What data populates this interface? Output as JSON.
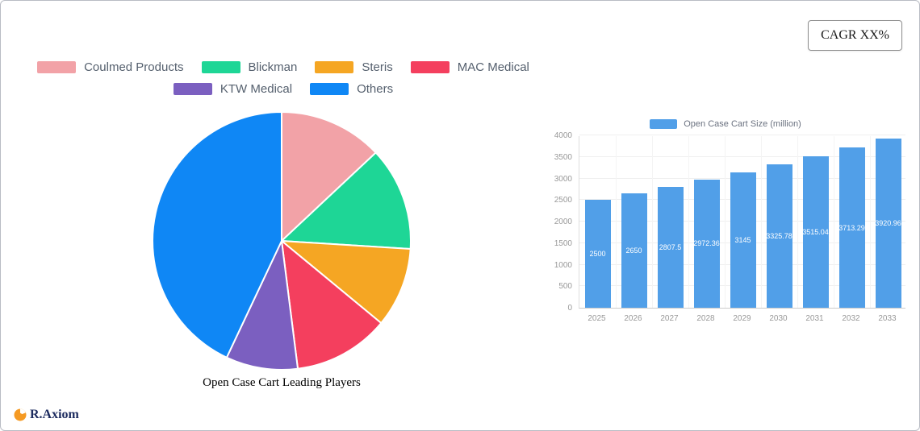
{
  "badge": {
    "label": "CAGR XX%"
  },
  "logo": {
    "text": "R.Axiom"
  },
  "colors": {
    "bar_blue": "#519FE8",
    "axis_text": "#999999",
    "legend_text": "#55606e"
  },
  "chart_data": [
    {
      "type": "pie",
      "title": "Open Case Cart Leading Players",
      "legend_position": "top",
      "legend_rows": [
        [
          0,
          1,
          2,
          3
        ],
        [
          4,
          5
        ]
      ],
      "values_are_estimates": true,
      "slices": [
        {
          "name": "Coulmed Products",
          "value": 13,
          "color": "#F2A2A7"
        },
        {
          "name": "Blickman",
          "value": 13,
          "color": "#1ED696"
        },
        {
          "name": "Steris",
          "value": 10,
          "color": "#F5A623"
        },
        {
          "name": "MAC Medical",
          "value": 12,
          "color": "#F43F5E"
        },
        {
          "name": "KTW Medical",
          "value": 9,
          "color": "#7B5FC0"
        },
        {
          "name": "Others",
          "value": 43,
          "color": "#0F87F5"
        }
      ]
    },
    {
      "type": "bar",
      "series_name": "Open Case Cart Size (million)",
      "categories": [
        "2025",
        "2026",
        "2027",
        "2028",
        "2029",
        "2030",
        "2031",
        "2032",
        "2033"
      ],
      "values": [
        2500,
        2650,
        2807.5,
        2972.36,
        3145,
        3325.78,
        3515.04,
        3713.29,
        3920.96
      ],
      "labels": [
        "2500",
        "2650",
        "2807.5",
        "2972.36",
        "3145",
        "3325.78",
        "3515.04",
        "3713.29",
        "3920.96"
      ],
      "ylim": [
        0,
        4000
      ],
      "ytick_step": 500,
      "bar_color": "#519FE8",
      "grid": true,
      "legend_position": "top"
    }
  ]
}
